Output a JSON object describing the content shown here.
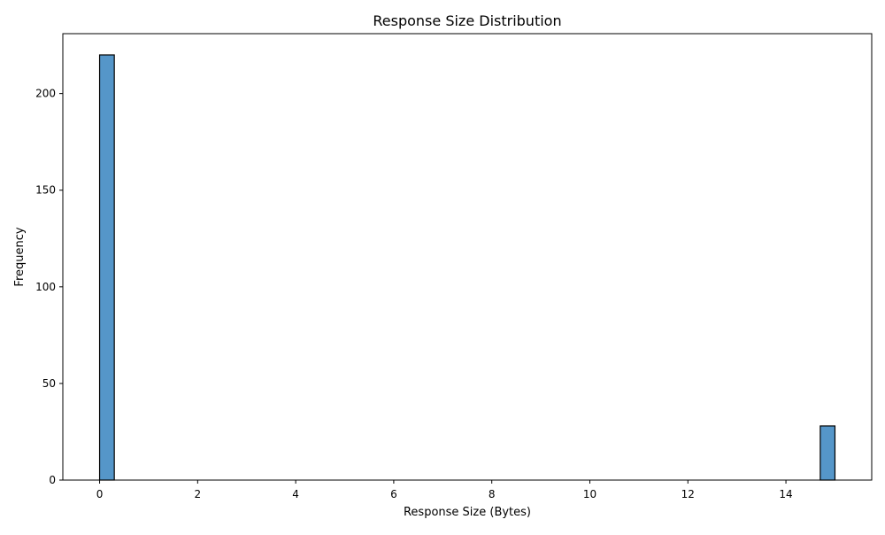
{
  "chart_data": {
    "type": "bar",
    "title": "Response Size Distribution",
    "xlabel": "Response Size (Bytes)",
    "ylabel": "Frequency",
    "xlim": [
      -0.75,
      15.75
    ],
    "ylim": [
      0,
      231
    ],
    "x_ticks": [
      0,
      2,
      4,
      6,
      8,
      10,
      12,
      14
    ],
    "y_ticks": [
      0,
      50,
      100,
      150,
      200
    ],
    "bins": [
      {
        "x0": 0.0,
        "x1": 0.3,
        "value": 220
      },
      {
        "x0": 14.7,
        "x1": 15.0,
        "value": 28
      }
    ],
    "bar_color": "#5596c9",
    "edge_color": "#000000",
    "grid": false
  }
}
